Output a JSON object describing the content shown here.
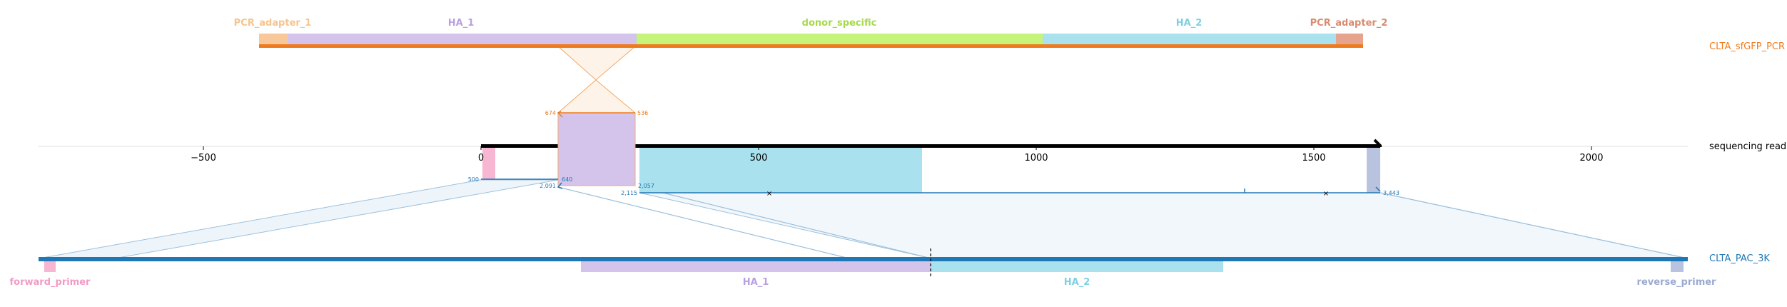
{
  "tracks": {
    "top": {
      "name": "CLTA_sfGFP_PCR",
      "color": "#ef7b1e",
      "features": [
        {
          "label": "PCR_adapter_1",
          "color": "#f8c89a",
          "text_color": "#f5c48f"
        },
        {
          "label": "HA_1",
          "color": "#d4c4ec",
          "text_color": "#b9a1e0"
        },
        {
          "label": "donor_specific",
          "color": "#c6f47a",
          "text_color": "#a6d94a"
        },
        {
          "label": "HA_2",
          "color": "#a9e1ee",
          "text_color": "#7fd0e2"
        },
        {
          "label": "PCR_adapter_2",
          "color": "#e6a48e",
          "text_color": "#d98b70"
        }
      ]
    },
    "middle": {
      "name": "sequencing read",
      "axis_ticks": [
        "−500",
        "0",
        "500",
        "1000",
        "1500",
        "2000"
      ],
      "alignment_numbers_orange": [
        "674",
        "536"
      ],
      "alignment_numbers_blue": [
        "500",
        "640",
        "2,091",
        "2,057",
        "2,115",
        "3,443"
      ]
    },
    "bottom": {
      "name": "CLTA_PAC_3K",
      "color": "#1f77b4",
      "features": [
        {
          "label": "forward_primer",
          "color": "#f7b6d2",
          "text_color": "#f39ac4"
        },
        {
          "label": "HA_1",
          "color": "#d4c4ec",
          "text_color": "#b9a1e0"
        },
        {
          "label": "HA_2",
          "color": "#a9e1ee",
          "text_color": "#7fd0e2"
        },
        {
          "label": "reverse_primer",
          "color": "#b9c2de",
          "text_color": "#9aaad0"
        }
      ]
    }
  }
}
